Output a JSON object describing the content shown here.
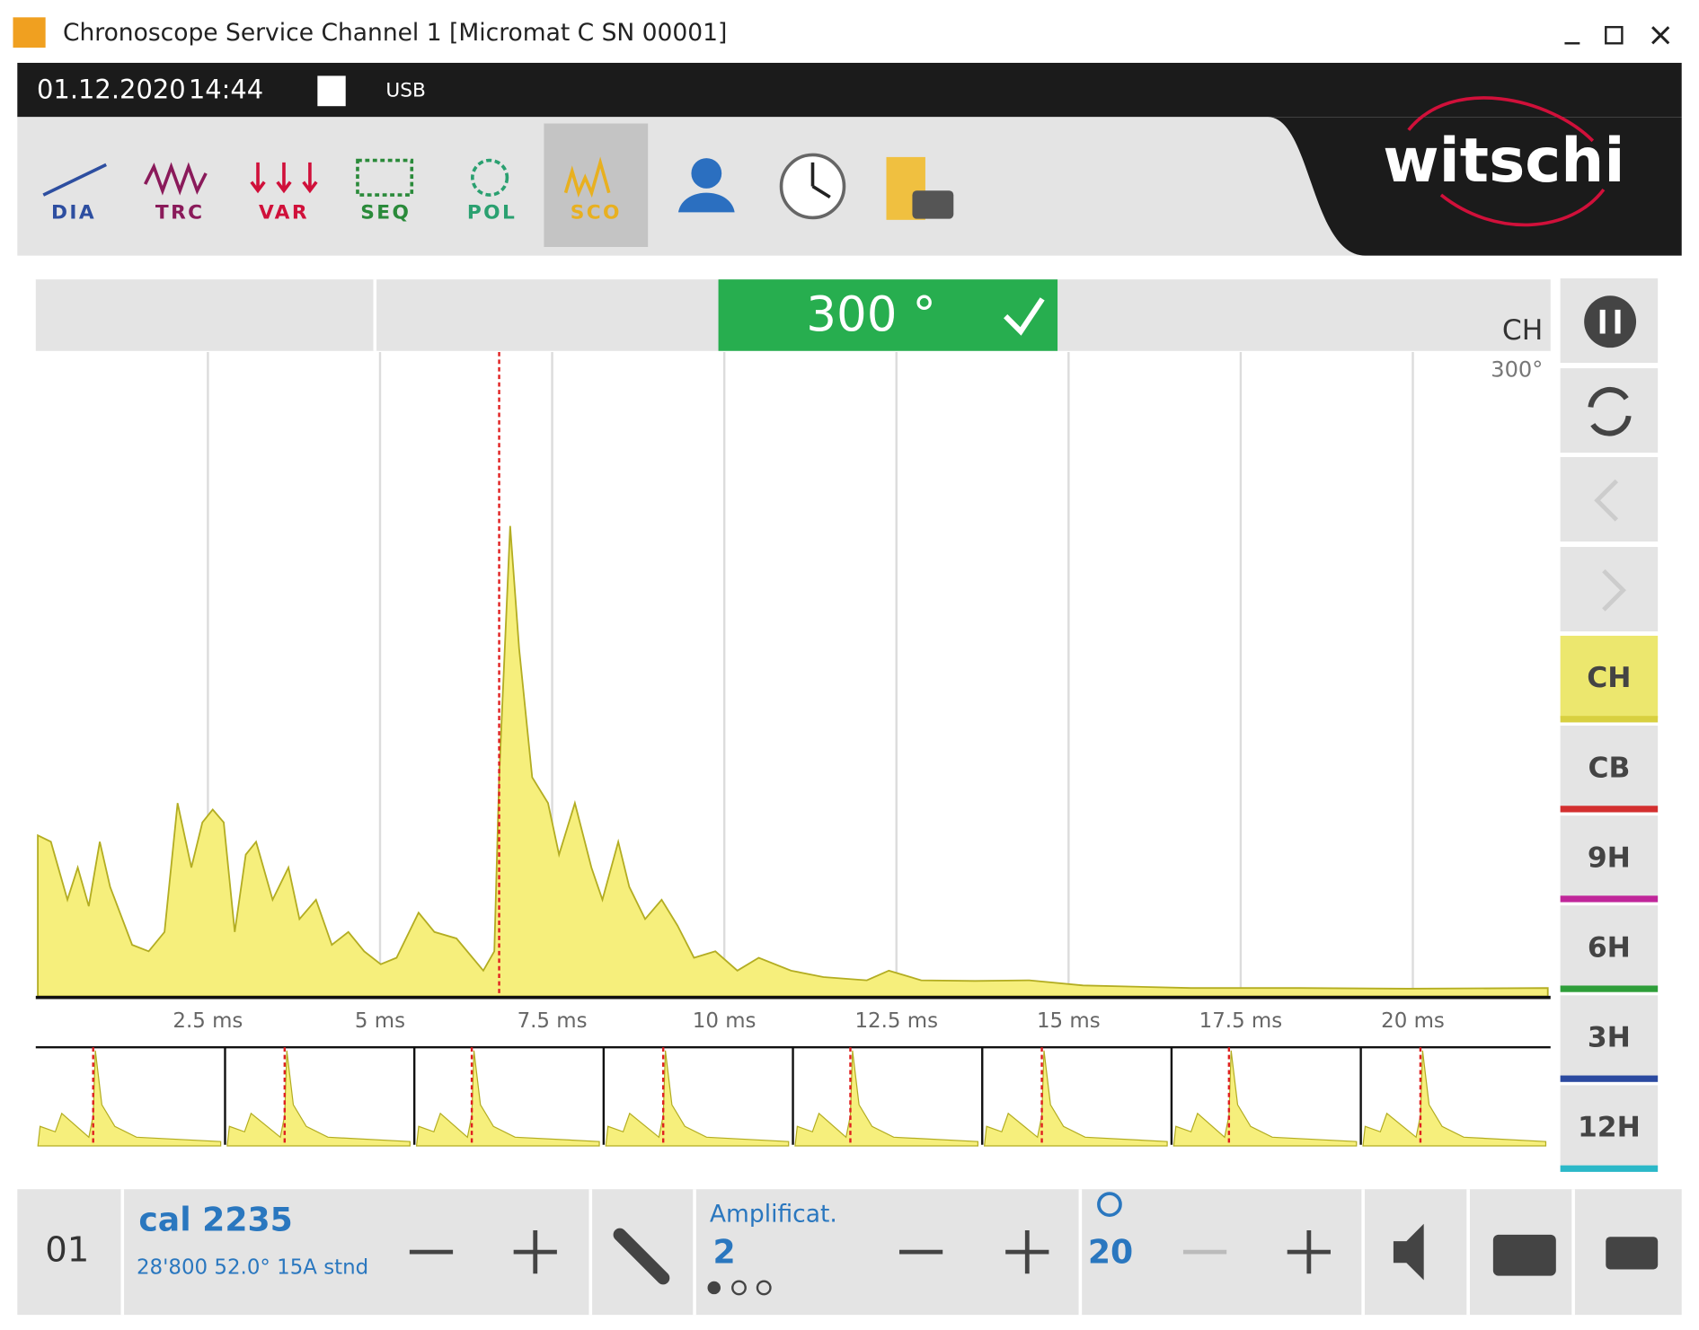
{
  "window": {
    "title": "Chronoscope Service Channel 1 [Micromat C SN 00001]"
  },
  "status_bar": {
    "date": "01.12.2020",
    "time": "14:44",
    "connection": "USB"
  },
  "toolbar": {
    "tabs": [
      "DIA",
      "TRC",
      "VAR",
      "SEQ",
      "POL",
      "SCO"
    ],
    "logo": "witschi"
  },
  "banner": {
    "lift_angle": "300 °"
  },
  "chart_data": {
    "type": "area",
    "label": "CH",
    "sublabel": "300°",
    "color": "#f6ef7c",
    "line_color": "#b3ad22",
    "x": [
      0.03,
      0.22,
      0.46,
      0.61,
      0.77,
      0.93,
      1.08,
      1.4,
      1.64,
      1.87,
      2.06,
      2.26,
      2.42,
      2.57,
      2.73,
      2.89,
      3.05,
      3.2,
      3.44,
      3.67,
      3.83,
      4.07,
      4.3,
      4.54,
      4.77,
      5.01,
      5.24,
      5.56,
      5.79,
      6.11,
      6.5,
      6.66,
      6.73,
      6.89,
      7.02,
      7.21,
      7.44,
      7.6,
      7.83,
      8.07,
      8.23,
      8.46,
      8.62,
      8.85,
      9.09,
      9.32,
      9.56,
      9.87,
      10.19,
      10.5,
      10.97,
      11.44,
      12.07,
      12.39,
      12.86,
      13.64,
      14.43,
      15.21,
      16.78,
      18.35,
      19.92,
      21.96
    ],
    "values": [
      25,
      24,
      15,
      20,
      14,
      24,
      17,
      8,
      7,
      10,
      30,
      20,
      27,
      29,
      27,
      10,
      22,
      24,
      15,
      20,
      12,
      15,
      8,
      10,
      7,
      5,
      6,
      13,
      10,
      9,
      4,
      7,
      34,
      73,
      54,
      34,
      30,
      22,
      30,
      20,
      15,
      24,
      17,
      12,
      15,
      11,
      6,
      7,
      4,
      6,
      4,
      3,
      2.5,
      4,
      2.5,
      2.4,
      2.5,
      1.7,
      1.3,
      1.3,
      1.2,
      1.3
    ],
    "reference_line_x": 6.73,
    "xlim": [
      0,
      22
    ],
    "ylim": [
      0,
      100
    ],
    "xticks": [
      {
        "value": 2.5,
        "label": "2.5 ms"
      },
      {
        "value": 5,
        "label": "5 ms"
      },
      {
        "value": 7.5,
        "label": "7.5 ms"
      },
      {
        "value": 10,
        "label": "10 ms"
      },
      {
        "value": 12.5,
        "label": "12.5 ms"
      },
      {
        "value": 15,
        "label": "15 ms"
      },
      {
        "value": 17.5,
        "label": "17.5 ms"
      },
      {
        "value": 20,
        "label": "20 ms"
      }
    ],
    "grid": true
  },
  "side_buttons": [
    "CH",
    "CB",
    "9H",
    "6H",
    "3H",
    "12H"
  ],
  "footer": {
    "channel": "01",
    "caliber": "cal 2235",
    "details": "28'800  52.0°  15A  stnd",
    "amplification_label": "Amplificat.",
    "amplification": "2",
    "zoom": "20"
  }
}
